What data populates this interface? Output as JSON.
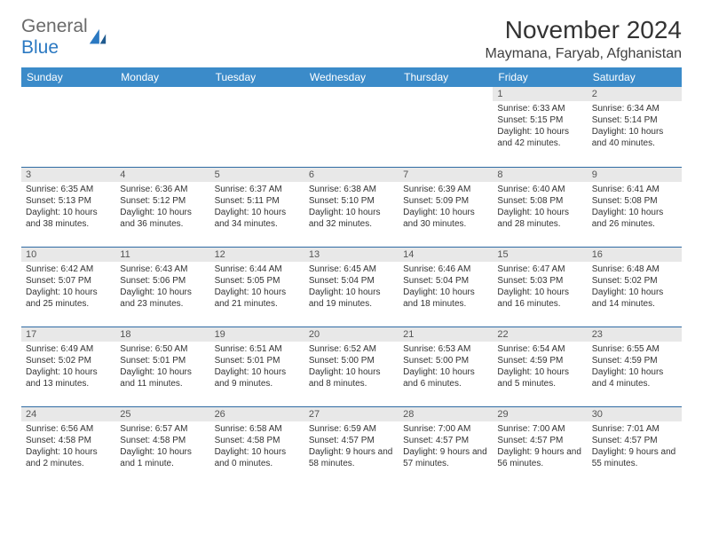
{
  "logo": {
    "text_a": "General",
    "text_b": "Blue",
    "fill": "#2b79c2"
  },
  "title": "November 2024",
  "location": "Maymana, Faryab, Afghanistan",
  "header_bg": "#3b8bc9",
  "header_fg": "#ffffff",
  "week_border": "#2e6aa3",
  "daynum_bg": "#e8e8e8",
  "weekdays": [
    "Sunday",
    "Monday",
    "Tuesday",
    "Wednesday",
    "Thursday",
    "Friday",
    "Saturday"
  ],
  "days": [
    {
      "n": 1,
      "sunrise": "6:33 AM",
      "sunset": "5:15 PM",
      "daylight": "10 hours and 42 minutes."
    },
    {
      "n": 2,
      "sunrise": "6:34 AM",
      "sunset": "5:14 PM",
      "daylight": "10 hours and 40 minutes."
    },
    {
      "n": 3,
      "sunrise": "6:35 AM",
      "sunset": "5:13 PM",
      "daylight": "10 hours and 38 minutes."
    },
    {
      "n": 4,
      "sunrise": "6:36 AM",
      "sunset": "5:12 PM",
      "daylight": "10 hours and 36 minutes."
    },
    {
      "n": 5,
      "sunrise": "6:37 AM",
      "sunset": "5:11 PM",
      "daylight": "10 hours and 34 minutes."
    },
    {
      "n": 6,
      "sunrise": "6:38 AM",
      "sunset": "5:10 PM",
      "daylight": "10 hours and 32 minutes."
    },
    {
      "n": 7,
      "sunrise": "6:39 AM",
      "sunset": "5:09 PM",
      "daylight": "10 hours and 30 minutes."
    },
    {
      "n": 8,
      "sunrise": "6:40 AM",
      "sunset": "5:08 PM",
      "daylight": "10 hours and 28 minutes."
    },
    {
      "n": 9,
      "sunrise": "6:41 AM",
      "sunset": "5:08 PM",
      "daylight": "10 hours and 26 minutes."
    },
    {
      "n": 10,
      "sunrise": "6:42 AM",
      "sunset": "5:07 PM",
      "daylight": "10 hours and 25 minutes."
    },
    {
      "n": 11,
      "sunrise": "6:43 AM",
      "sunset": "5:06 PM",
      "daylight": "10 hours and 23 minutes."
    },
    {
      "n": 12,
      "sunrise": "6:44 AM",
      "sunset": "5:05 PM",
      "daylight": "10 hours and 21 minutes."
    },
    {
      "n": 13,
      "sunrise": "6:45 AM",
      "sunset": "5:04 PM",
      "daylight": "10 hours and 19 minutes."
    },
    {
      "n": 14,
      "sunrise": "6:46 AM",
      "sunset": "5:04 PM",
      "daylight": "10 hours and 18 minutes."
    },
    {
      "n": 15,
      "sunrise": "6:47 AM",
      "sunset": "5:03 PM",
      "daylight": "10 hours and 16 minutes."
    },
    {
      "n": 16,
      "sunrise": "6:48 AM",
      "sunset": "5:02 PM",
      "daylight": "10 hours and 14 minutes."
    },
    {
      "n": 17,
      "sunrise": "6:49 AM",
      "sunset": "5:02 PM",
      "daylight": "10 hours and 13 minutes."
    },
    {
      "n": 18,
      "sunrise": "6:50 AM",
      "sunset": "5:01 PM",
      "daylight": "10 hours and 11 minutes."
    },
    {
      "n": 19,
      "sunrise": "6:51 AM",
      "sunset": "5:01 PM",
      "daylight": "10 hours and 9 minutes."
    },
    {
      "n": 20,
      "sunrise": "6:52 AM",
      "sunset": "5:00 PM",
      "daylight": "10 hours and 8 minutes."
    },
    {
      "n": 21,
      "sunrise": "6:53 AM",
      "sunset": "5:00 PM",
      "daylight": "10 hours and 6 minutes."
    },
    {
      "n": 22,
      "sunrise": "6:54 AM",
      "sunset": "4:59 PM",
      "daylight": "10 hours and 5 minutes."
    },
    {
      "n": 23,
      "sunrise": "6:55 AM",
      "sunset": "4:59 PM",
      "daylight": "10 hours and 4 minutes."
    },
    {
      "n": 24,
      "sunrise": "6:56 AM",
      "sunset": "4:58 PM",
      "daylight": "10 hours and 2 minutes."
    },
    {
      "n": 25,
      "sunrise": "6:57 AM",
      "sunset": "4:58 PM",
      "daylight": "10 hours and 1 minute."
    },
    {
      "n": 26,
      "sunrise": "6:58 AM",
      "sunset": "4:58 PM",
      "daylight": "10 hours and 0 minutes."
    },
    {
      "n": 27,
      "sunrise": "6:59 AM",
      "sunset": "4:57 PM",
      "daylight": "9 hours and 58 minutes."
    },
    {
      "n": 28,
      "sunrise": "7:00 AM",
      "sunset": "4:57 PM",
      "daylight": "9 hours and 57 minutes."
    },
    {
      "n": 29,
      "sunrise": "7:00 AM",
      "sunset": "4:57 PM",
      "daylight": "9 hours and 56 minutes."
    },
    {
      "n": 30,
      "sunrise": "7:01 AM",
      "sunset": "4:57 PM",
      "daylight": "9 hours and 55 minutes."
    }
  ],
  "first_weekday_index": 5
}
